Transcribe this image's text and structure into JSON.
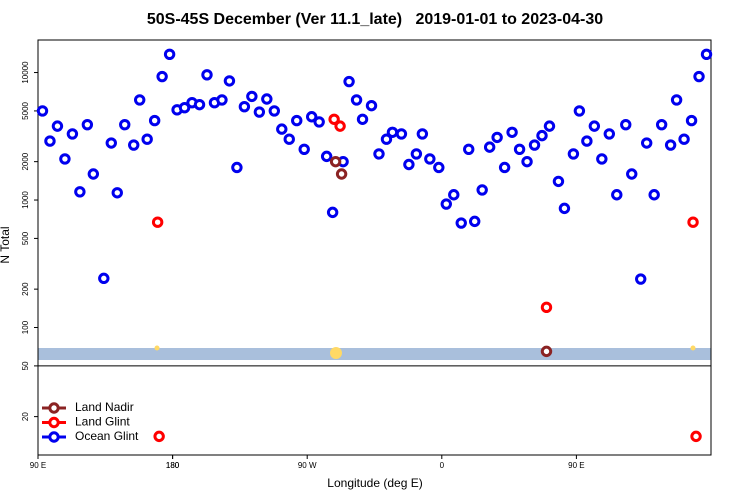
{
  "chart_data": {
    "type": "scatter",
    "title": "50S-45S December (Ver 11.1_late)   2019-01-01 to 2023-04-30",
    "x_label": "Longitude (deg E)",
    "y_label": "N Total",
    "xlim": [
      90,
      540
    ],
    "xticks": [
      {
        "value": 90,
        "label": "90 E"
      },
      180,
      {
        "value": 270,
        "label": "90 W"
      },
      {
        "value": 360,
        "label": "0"
      },
      {
        "value": 450,
        "label": "90 E"
      },
      180.0
    ],
    "ylim": [
      10,
      18000
    ],
    "log_y": true,
    "yticks": [
      20,
      50,
      100,
      200,
      500,
      1000,
      2000,
      5000,
      10000
    ],
    "panel_split": 50,
    "legend": "lower left",
    "series": [
      {
        "name": "Land Nadir",
        "color": "#8b2323",
        "x": [
          289,
          293,
          430
        ],
        "values": [
          2000,
          1600,
          65
        ]
      },
      {
        "name": "Land Glint",
        "color": "#ff0000",
        "x": [
          170,
          288,
          292,
          430,
          528,
          171,
          530
        ],
        "values": [
          670,
          4300,
          3800,
          144,
          670,
          14,
          14
        ]
      },
      {
        "name": "Ocean Glint",
        "color": "#0000ee",
        "x": [
          93,
          98,
          103,
          108,
          113,
          118,
          123,
          127,
          134,
          139,
          143,
          148,
          154,
          158,
          163,
          168,
          173,
          178,
          183,
          188,
          193,
          198,
          203,
          208,
          213,
          218,
          223,
          228,
          233,
          238,
          243,
          248,
          253,
          258,
          263,
          268,
          273,
          278,
          283,
          287,
          294,
          298,
          303,
          307,
          313,
          318,
          323,
          327,
          333,
          338,
          343,
          347,
          352,
          358,
          363,
          368,
          373,
          378,
          382,
          387,
          392,
          397,
          402,
          407,
          412,
          417,
          422,
          427,
          432,
          438,
          442,
          448,
          452,
          457,
          462,
          467,
          472,
          477,
          483,
          487,
          493,
          497,
          502,
          507,
          513,
          517,
          522,
          527,
          532,
          537
        ],
        "values": [
          5000,
          2900,
          3800,
          2100,
          3300,
          1160,
          3900,
          1600,
          243,
          2800,
          1140,
          3900,
          2700,
          6100,
          3000,
          4200,
          9300,
          13900,
          5100,
          5300,
          5800,
          5600,
          9600,
          5800,
          6100,
          8600,
          1800,
          5400,
          6500,
          4900,
          6200,
          5000,
          3600,
          3000,
          4200,
          2500,
          4500,
          4100,
          2200,
          800,
          2000,
          8500,
          6100,
          4300,
          5500,
          2300,
          3000,
          3400,
          3300,
          1900,
          2300,
          3300,
          2100,
          1800,
          930,
          1100,
          660,
          2500,
          680,
          1200,
          2600,
          3100,
          1800,
          3400,
          2500,
          2000,
          2700,
          3200,
          3800,
          1400,
          860,
          2300,
          5000,
          2900,
          3800,
          2100,
          3300,
          1100,
          3900,
          1600,
          240,
          2800,
          1100,
          3900,
          2700,
          6100,
          3000,
          4200,
          9300,
          13900
        ]
      }
    ]
  }
}
